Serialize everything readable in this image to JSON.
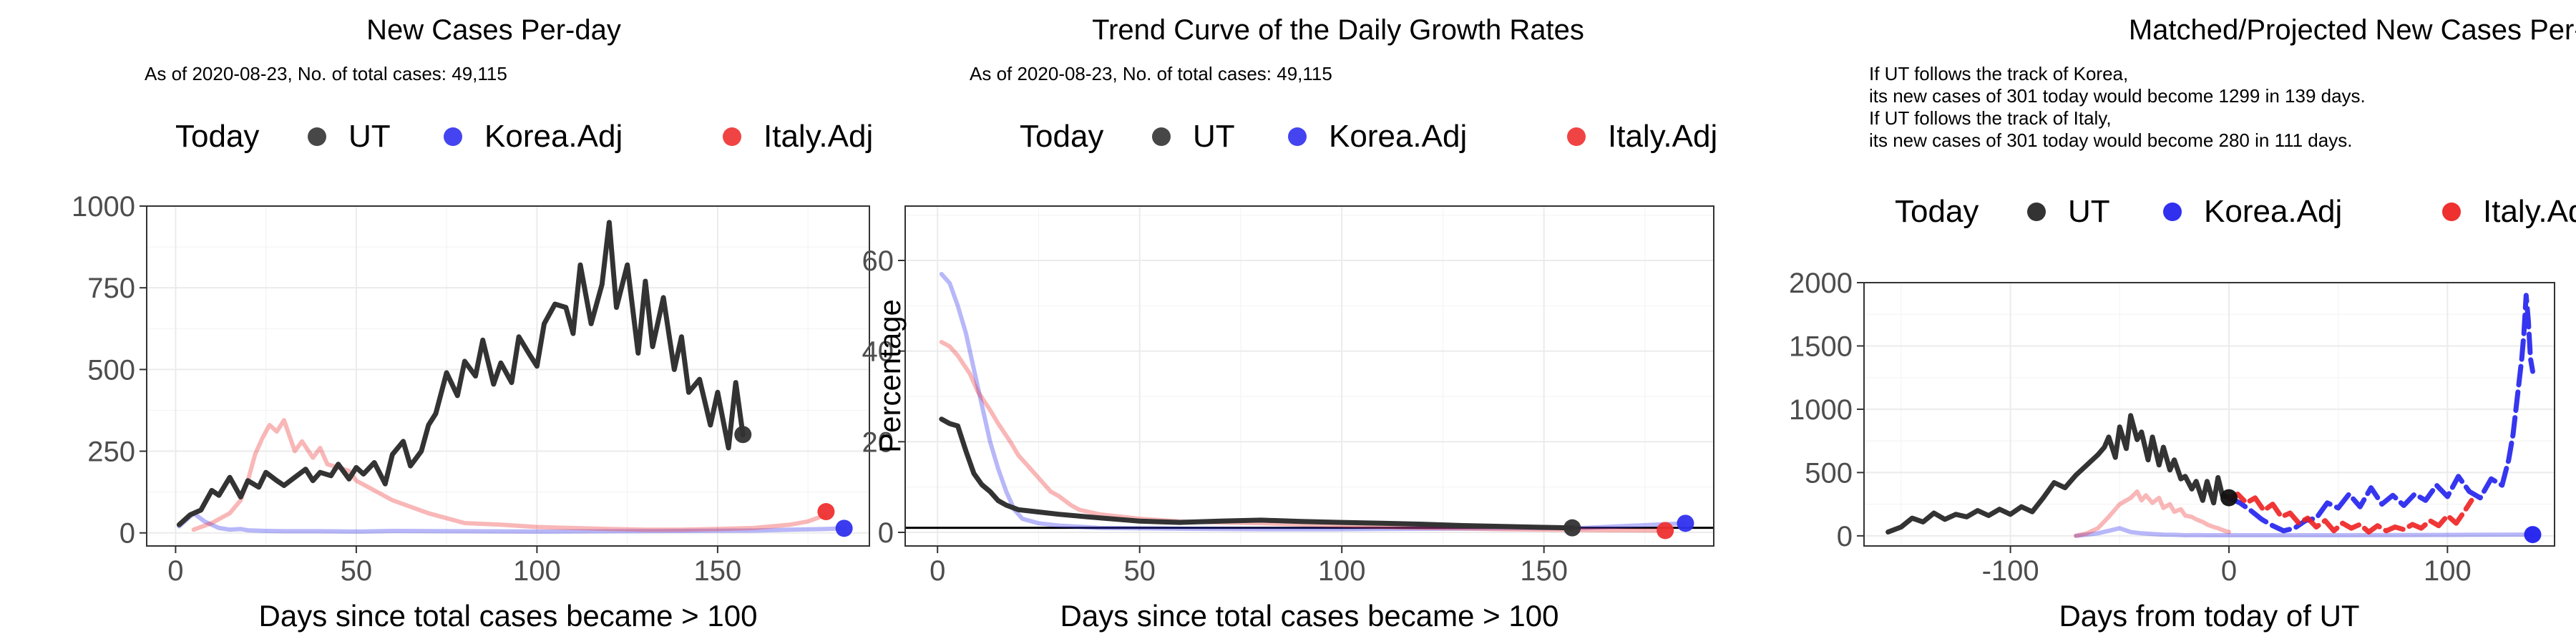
{
  "colors": {
    "ut": "#333333",
    "korea": "#3030ee",
    "italy": "#ee3030",
    "today_dot": "#333333"
  },
  "chart_data": [
    {
      "type": "line",
      "title": "New Cases Per-day",
      "subtitle_lines": [
        "As of 2020-08-23, No. of total cases: 49,115"
      ],
      "xlabel": "Days since total cases became > 100",
      "ylabel": "",
      "xlim": [
        -8,
        192
      ],
      "ylim": [
        -40,
        1000
      ],
      "xticks": [
        0,
        50,
        100,
        150
      ],
      "yticks": [
        0,
        250,
        500,
        750,
        1000
      ],
      "legend": {
        "position": "top",
        "title": "Today",
        "entries": [
          "UT",
          "Korea.Adj",
          "Italy.Adj"
        ]
      },
      "series": [
        {
          "name": "UT",
          "color": "#333333",
          "style": "solid",
          "x": [
            1,
            4,
            7,
            10,
            12,
            15,
            18,
            20,
            23,
            25,
            28,
            30,
            33,
            36,
            38,
            40,
            43,
            45,
            48,
            50,
            52,
            55,
            58,
            60,
            63,
            65,
            68,
            70,
            72,
            75,
            78,
            80,
            83,
            85,
            88,
            90,
            93,
            95,
            98,
            100,
            102,
            105,
            108,
            110,
            112,
            115,
            118,
            120,
            122,
            125,
            128,
            130,
            132,
            135,
            138,
            140,
            142,
            145,
            148,
            150,
            153,
            155,
            157
          ],
          "y": [
            25,
            55,
            70,
            130,
            115,
            170,
            110,
            160,
            140,
            185,
            160,
            145,
            170,
            195,
            160,
            185,
            175,
            210,
            165,
            200,
            180,
            215,
            150,
            240,
            280,
            205,
            250,
            330,
            365,
            490,
            420,
            525,
            480,
            590,
            455,
            520,
            460,
            600,
            545,
            510,
            640,
            700,
            690,
            610,
            820,
            640,
            760,
            950,
            690,
            820,
            550,
            770,
            570,
            720,
            500,
            600,
            430,
            470,
            330,
            430,
            260,
            460,
            300
          ]
        },
        {
          "name": "Korea.Adj",
          "color": "#3030ee",
          "style": "faded",
          "x": [
            1,
            3,
            5,
            8,
            10,
            12,
            15,
            18,
            20,
            25,
            30,
            40,
            50,
            60,
            80,
            100,
            120,
            140,
            160,
            170,
            180,
            185
          ],
          "y": [
            20,
            40,
            60,
            35,
            25,
            15,
            10,
            12,
            8,
            6,
            5,
            5,
            4,
            6,
            5,
            4,
            5,
            6,
            7,
            10,
            12,
            14
          ]
        },
        {
          "name": "Italy.Adj",
          "color": "#ee3030",
          "style": "faded",
          "x": [
            5,
            10,
            15,
            18,
            20,
            22,
            24,
            26,
            28,
            30,
            33,
            35,
            38,
            40,
            42,
            45,
            48,
            50,
            55,
            60,
            65,
            70,
            75,
            80,
            90,
            100,
            110,
            120,
            130,
            140,
            150,
            160,
            170,
            175,
            180
          ],
          "y": [
            10,
            30,
            60,
            100,
            160,
            240,
            290,
            330,
            310,
            345,
            250,
            280,
            230,
            260,
            210,
            200,
            190,
            160,
            130,
            100,
            80,
            60,
            45,
            30,
            25,
            18,
            15,
            12,
            10,
            10,
            12,
            15,
            25,
            35,
            55
          ]
        }
      ],
      "today_points": [
        {
          "series": "UT",
          "x": 157,
          "y": 301,
          "color": "#333333"
        },
        {
          "series": "Korea.Adj",
          "x": 185,
          "y": 14,
          "color": "#3030ee"
        },
        {
          "series": "Italy.Adj",
          "x": 180,
          "y": 65,
          "color": "#ee3030"
        }
      ]
    },
    {
      "type": "line",
      "title": "Trend Curve of the Daily Growth Rates",
      "subtitle_lines": [
        "As of 2020-08-23, No. of total cases: 49,115"
      ],
      "xlabel": "Days since total cases became > 100",
      "ylabel": "Percentage",
      "xlim": [
        -8,
        192
      ],
      "ylim": [
        -3,
        72
      ],
      "xticks": [
        0,
        50,
        100,
        150
      ],
      "yticks": [
        0,
        20,
        40,
        60
      ],
      "hline": 1,
      "legend": {
        "position": "top",
        "title": "Today",
        "entries": [
          "UT",
          "Korea.Adj",
          "Italy.Adj"
        ]
      },
      "series": [
        {
          "name": "UT",
          "color": "#333333",
          "style": "solid",
          "x": [
            1,
            3,
            5,
            7,
            9,
            11,
            13,
            15,
            17,
            20,
            25,
            30,
            40,
            50,
            60,
            70,
            80,
            90,
            100,
            110,
            120,
            130,
            140,
            150,
            157
          ],
          "y": [
            25,
            24,
            23.5,
            18,
            13,
            10.5,
            9,
            7,
            6,
            5,
            4.5,
            4,
            3.2,
            2.5,
            2.2,
            2.5,
            2.7,
            2.4,
            2.2,
            2,
            1.8,
            1.5,
            1.3,
            1.1,
            1
          ]
        },
        {
          "name": "Korea.Adj",
          "color": "#3030ee",
          "style": "faded",
          "x": [
            1,
            3,
            5,
            7,
            9,
            11,
            13,
            15,
            17,
            19,
            21,
            25,
            30,
            40,
            60,
            80,
            100,
            120,
            140,
            160,
            185
          ],
          "y": [
            57,
            55,
            50,
            44,
            36,
            28,
            20,
            14,
            9,
            5,
            3,
            2,
            1.5,
            1,
            0.8,
            0.7,
            0.7,
            0.8,
            0.9,
            1,
            2
          ]
        },
        {
          "name": "Italy.Adj",
          "color": "#ee3030",
          "style": "faded",
          "x": [
            1,
            3,
            5,
            8,
            10,
            13,
            15,
            18,
            20,
            23,
            25,
            28,
            30,
            33,
            35,
            40,
            45,
            50,
            60,
            80,
            100,
            120,
            140,
            160,
            180
          ],
          "y": [
            42,
            41,
            39,
            35,
            31,
            27,
            24,
            20,
            17,
            14,
            12,
            9,
            8,
            6,
            5,
            4,
            3.5,
            3,
            2.4,
            2,
            1.5,
            1,
            0.7,
            0.5,
            0.4
          ]
        }
      ],
      "today_points": [
        {
          "series": "UT",
          "x": 157,
          "y": 1,
          "color": "#333333"
        },
        {
          "series": "Korea.Adj",
          "x": 185,
          "y": 2,
          "color": "#3030ee"
        },
        {
          "series": "Italy.Adj",
          "x": 180,
          "y": 0.4,
          "color": "#ee3030"
        }
      ]
    },
    {
      "type": "line",
      "title": "Matched/Projected New Cases Per-day",
      "subtitle_lines": [
        "If UT follows the track of Korea,",
        "its new cases of 301 today would become 1299 in 139 days.",
        "If UT follows the track of Italy,",
        "its new cases of 301 today would become 280 in 111 days."
      ],
      "xlabel": "Days from today of UT",
      "ylabel": "",
      "xlim": [
        -167,
        149
      ],
      "ylim": [
        -80,
        2000
      ],
      "xticks": [
        -100,
        0,
        100
      ],
      "yticks": [
        0,
        500,
        1000,
        1500,
        2000
      ],
      "legend": {
        "position": "top",
        "title": "Today",
        "entries": [
          "UT",
          "Korea.Adj",
          "Italy.Adj"
        ]
      },
      "series": [
        {
          "name": "UT",
          "color": "#333333",
          "style": "solid",
          "x": [
            -156,
            -150,
            -145,
            -140,
            -135,
            -130,
            -125,
            -120,
            -115,
            -110,
            -105,
            -100,
            -95,
            -90,
            -85,
            -80,
            -75,
            -70,
            -65,
            -60,
            -57,
            -55,
            -52,
            -50,
            -47,
            -45,
            -42,
            -40,
            -37,
            -35,
            -32,
            -30,
            -27,
            -25,
            -22,
            -20,
            -17,
            -15,
            -12,
            -10,
            -7,
            -5,
            -3,
            0
          ],
          "y": [
            30,
            70,
            140,
            110,
            180,
            130,
            170,
            150,
            200,
            160,
            210,
            170,
            230,
            190,
            300,
            420,
            380,
            480,
            560,
            640,
            700,
            780,
            620,
            860,
            690,
            950,
            760,
            820,
            600,
            780,
            560,
            700,
            520,
            600,
            450,
            470,
            370,
            430,
            280,
            430,
            260,
            460,
            320,
            301
          ]
        },
        {
          "name": "Korea.Adj",
          "color": "#3030ee",
          "style": "faded",
          "x": [
            -70,
            -65,
            -60,
            -55,
            -50,
            -45,
            -40,
            -35,
            -30,
            -25,
            -20,
            -15,
            -10,
            -5,
            0,
            20,
            50,
            80,
            110,
            139
          ],
          "y": [
            0,
            10,
            20,
            40,
            60,
            30,
            20,
            15,
            10,
            8,
            5,
            6,
            5,
            5,
            5,
            5,
            5,
            6,
            8,
            10
          ]
        },
        {
          "name": "Italy.Adj",
          "color": "#ee3030",
          "style": "faded",
          "x": [
            -70,
            -65,
            -60,
            -55,
            -50,
            -45,
            -42,
            -40,
            -38,
            -35,
            -32,
            -30,
            -27,
            -25,
            -22,
            -20,
            -17,
            -15,
            -12,
            -10,
            -7,
            -5,
            -2,
            0
          ],
          "y": [
            0,
            20,
            60,
            150,
            250,
            300,
            350,
            280,
            320,
            260,
            300,
            220,
            250,
            190,
            210,
            160,
            150,
            130,
            110,
            90,
            70,
            60,
            40,
            30
          ]
        },
        {
          "name": "Korea.Adj projected",
          "color": "#2020ee",
          "style": "dashed",
          "x": [
            0,
            5,
            10,
            15,
            20,
            25,
            30,
            35,
            40,
            45,
            50,
            55,
            60,
            65,
            70,
            75,
            80,
            85,
            90,
            95,
            100,
            105,
            110,
            115,
            120,
            125,
            128,
            130,
            132,
            134,
            135,
            136,
            137,
            138,
            139
          ],
          "y": [
            301,
            260,
            200,
            130,
            80,
            40,
            60,
            120,
            140,
            260,
            220,
            330,
            230,
            380,
            250,
            320,
            240,
            330,
            280,
            400,
            310,
            470,
            350,
            300,
            450,
            400,
            600,
            800,
            1100,
            1400,
            1600,
            1900,
            1700,
            1400,
            1299
          ]
        },
        {
          "name": "Italy.Adj projected",
          "color": "#ee2020",
          "style": "dashed",
          "x": [
            0,
            4,
            8,
            12,
            16,
            20,
            24,
            28,
            32,
            36,
            40,
            44,
            48,
            52,
            56,
            60,
            64,
            68,
            72,
            76,
            80,
            84,
            88,
            92,
            96,
            100,
            104,
            108,
            111
          ],
          "y": [
            301,
            330,
            260,
            300,
            200,
            250,
            150,
            180,
            100,
            140,
            70,
            120,
            40,
            100,
            60,
            90,
            30,
            80,
            40,
            70,
            50,
            90,
            60,
            120,
            80,
            160,
            100,
            200,
            280
          ]
        }
      ],
      "today_points": [
        {
          "series": "UT",
          "x": 0,
          "y": 301,
          "color": "#111111"
        },
        {
          "series": "Korea.Adj",
          "x": 139,
          "y": 10,
          "color": "#2020ee"
        }
      ]
    }
  ]
}
